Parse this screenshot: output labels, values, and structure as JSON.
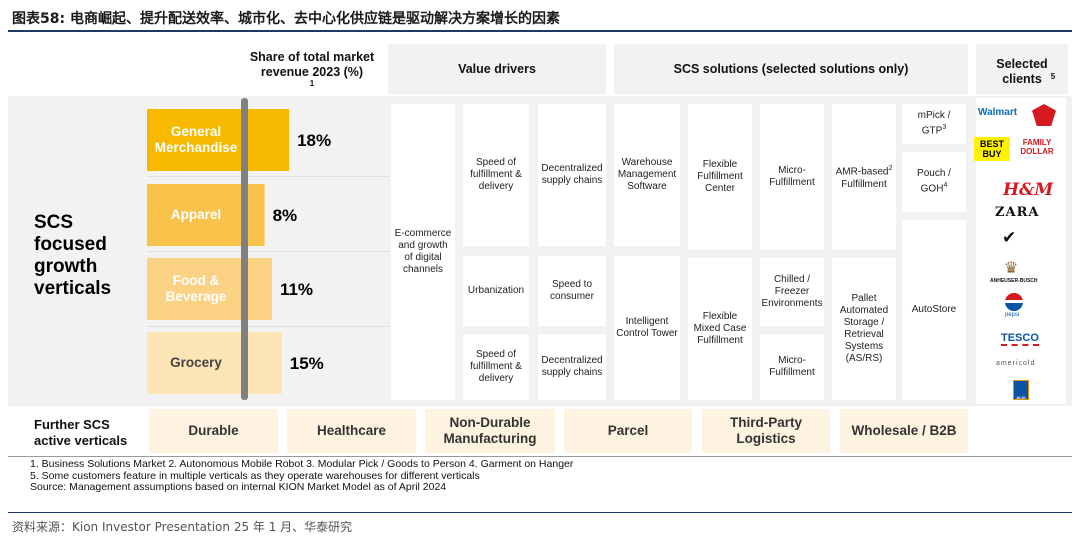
{
  "title": "图表58:  电商崛起、提升配送效率、城市化、去中心化供应链是驱动解决方案增长的因素",
  "headers": {
    "share": "Share of total market revenue 2023 (%)",
    "share_sup": "1",
    "value_drivers": "Value drivers",
    "scs_solutions": "SCS solutions (selected solutions only)",
    "clients": "Selected clients",
    "clients_sup": "5"
  },
  "scs_label": "SCS focused growth verticals",
  "colors": {
    "general": "#f7b900",
    "apparel": "#f9c24a",
    "food": "#fbd184",
    "grocery": "#fde4b4",
    "axis": "#808080",
    "further": "#fdf3e0"
  },
  "chart_data": {
    "type": "bar",
    "orientation": "horizontal",
    "categories": [
      "General Merchandise",
      "Apparel",
      "Food & Beverage",
      "Grocery"
    ],
    "values": [
      18,
      8,
      11,
      15
    ],
    "value_labels": [
      "18%",
      "8%",
      "11%",
      "15%"
    ],
    "xlabel": "Share of total market revenue 2023 (%)"
  },
  "value_drivers": {
    "main": "E-commerce and growth of digital channels",
    "col2": [
      "Speed of fulfillment & delivery",
      "Urbanization",
      "Speed of fulfillment & delivery"
    ],
    "col3": [
      "Decentralized supply chains",
      "Speed to consumer",
      "Decentralized supply chains"
    ]
  },
  "solutions": {
    "wms": "Warehouse Management Software",
    "ict": "Intelligent Control Tower",
    "ffc": "Flexible Fulfillment Center",
    "fmc": "Flexible Mixed Case Fulfillment",
    "micro1": "Micro-Fulfillment",
    "chilled": "Chilled / Freezer Environments",
    "micro2": "Micro-Fulfillment",
    "amr": "AMR-based",
    "amr_sup": "2",
    "amr2": "Fulfillment",
    "pallet": "Pallet Automated Storage / Retrieval Systems (AS/RS)",
    "mpick": "mPick / GTP",
    "mpick_sup": "3",
    "pouch": "Pouch / GOH",
    "pouch_sup": "4",
    "autostore": "AutoStore"
  },
  "clients": [
    "Walmart",
    "BEST BUY",
    "FAMILY DOLLAR",
    "H&M",
    "ZARA",
    "NIKE",
    "ANHEUSER-BUSCH",
    "pepsi",
    "TESCO",
    "americold",
    "ALDI"
  ],
  "further_label": "Further SCS active verticals",
  "further": [
    "Durable",
    "Healthcare",
    "Non-Durable Manufacturing",
    "Parcel",
    "Third-Party Logistics",
    "Wholesale / B2B"
  ],
  "notes": [
    "1.    Business Solutions Market   2.     Autonomous Mobile Robot   3.     Modular Pick / Goods to Person   4.     Garment on Hanger",
    "5.    Some customers feature in multiple verticals as they operate warehouses for different verticals",
    "Source: Management assumptions based on internal KION Market Model as of April 2024"
  ],
  "source": "资料来源：Kion Investor Presentation 25 年 1 月、华泰研究"
}
